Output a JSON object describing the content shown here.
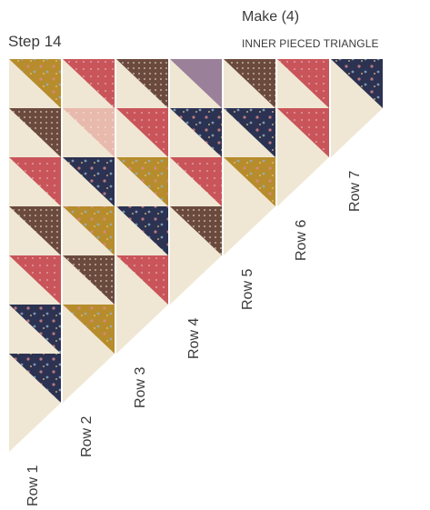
{
  "step": {
    "title": "Step 14"
  },
  "make": {
    "label": "Make (4)",
    "subtitle": "INNER PIECED TRIANGLE"
  },
  "fabrics": {
    "cream": "#efe7d3",
    "rose": "#c9555a",
    "blush": "#e8b9ad",
    "brown": "#6b4a3e",
    "mustard": "#b78c2c",
    "navy": "#2c3252",
    "mauve": "#9a8099"
  },
  "rows": [
    {
      "label": "Row 1",
      "blocks": [
        "mustard",
        "brown",
        "rose",
        "brown",
        "rose",
        "navy",
        "navy"
      ]
    },
    {
      "label": "Row 2",
      "blocks": [
        "rose",
        "blush",
        "navy",
        "mustard",
        "brown",
        "mustard"
      ]
    },
    {
      "label": "Row 3",
      "blocks": [
        "brown",
        "rose",
        "mustard",
        "navy",
        "rose"
      ]
    },
    {
      "label": "Row 4",
      "blocks": [
        "mauve",
        "navy",
        "rose",
        "brown"
      ]
    },
    {
      "label": "Row 5",
      "blocks": [
        "brown",
        "navy",
        "mustard"
      ]
    },
    {
      "label": "Row 6",
      "blocks": [
        "rose",
        "rose"
      ]
    },
    {
      "label": "Row 7",
      "blocks": [
        "navy"
      ]
    }
  ]
}
